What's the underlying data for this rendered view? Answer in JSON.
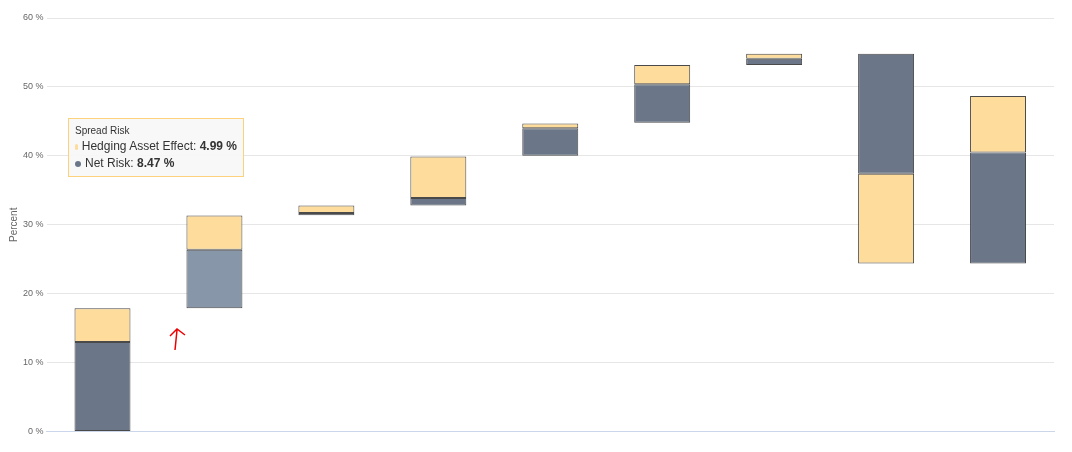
{
  "chart_data": {
    "type": "bar",
    "ylabel": "Percent",
    "categories": [
      null,
      null,
      null,
      null,
      null,
      null,
      null,
      null,
      null
    ],
    "series": [
      {
        "color": "#fddc9c",
        "base": [
          null,
          null,
          null,
          null,
          null,
          null,
          null,
          24.4,
          null
        ],
        "values": [
          null,
          null,
          null,
          null,
          null,
          null,
          null,
          13.0,
          null
        ]
      },
      {
        "color": "#6b7789",
        "colors": [
          "#6b7789",
          "#8796a8",
          "#6b7789",
          "#6b7789",
          "#6b7789",
          "#6b7789",
          "#6b7789",
          "#6b7789",
          "#6b7789"
        ],
        "base": [
          0,
          17.9,
          31.4,
          32.8,
          40.0,
          44.8,
          53.2,
          37.4,
          24.4
        ],
        "values": [
          13.0,
          8.47,
          0.3,
          1.1,
          4.0,
          5.6,
          0.9,
          17.4,
          16.1
        ]
      },
      {
        "color": "#fddc9c",
        "base": [
          13.0,
          26.37,
          31.7,
          33.9,
          44.0,
          50.4,
          54.1,
          null,
          40.5
        ],
        "values": [
          4.9,
          4.99,
          1.1,
          6.0,
          0.7,
          2.8,
          0.7,
          null,
          8.2
        ]
      }
    ],
    "ylim": [
      0,
      60
    ],
    "yticks": [
      {
        "value": 0,
        "label": "0 %"
      },
      {
        "value": 10,
        "label": "10 %"
      },
      {
        "value": 20,
        "label": "20 %"
      },
      {
        "value": 30,
        "label": "30 %"
      },
      {
        "value": 40,
        "label": "40 %"
      },
      {
        "value": 50,
        "label": "50 %"
      },
      {
        "value": 60,
        "label": "60 %"
      }
    ],
    "grid": "y",
    "legend": false,
    "annotations": [
      "Spread Risk",
      "Hedging Asset Effect: 4.99 %",
      "Net Risk: 8.47 %"
    ]
  }
}
